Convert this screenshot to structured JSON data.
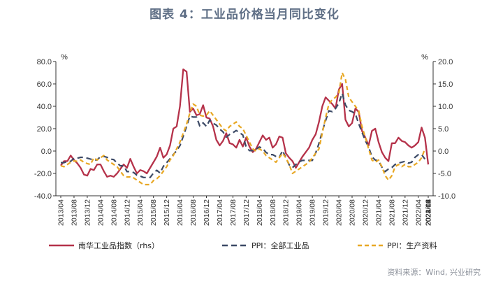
{
  "title": "图表 4：工业品价格当月同比变化",
  "source": "资料来源：Wind, 兴业研究",
  "chart_data": {
    "type": "line",
    "left_axis": {
      "unit": "%",
      "min": -40,
      "max": 80,
      "ticks": [
        "80.0",
        "60.0",
        "40.0",
        "20.0",
        "0.0",
        "-20.0",
        "-40.0"
      ]
    },
    "right_axis": {
      "unit": "%",
      "min": -10,
      "max": 20,
      "ticks": [
        "20.0",
        "15.0",
        "10.0",
        "5.0",
        "0.0",
        "-5.0",
        "-10.0"
      ]
    },
    "x_labels": [
      "2013/04",
      "2013/08",
      "2013/12",
      "2014/04",
      "2014/08",
      "2014/12",
      "2015/04",
      "2015/08",
      "2015/12",
      "2016/04",
      "2016/08",
      "2016/12",
      "2017/04",
      "2017/08",
      "2017/12",
      "2018/04",
      "2018/08",
      "2018/12",
      "2019/04",
      "2019/08",
      "2019/12",
      "2020/04",
      "2020/08",
      "2020/12",
      "2021/04",
      "2021/08",
      "2021/12",
      "2022/04",
      "2022/08",
      "2022/12",
      "2023/04",
      "2023/08",
      "2023/12",
      "2024/04",
      "2024/08"
    ],
    "grid": false,
    "series": [
      {
        "name": "南华工业品指数（rhs）",
        "color": "#b5324a",
        "dash": "solid",
        "axis": "left",
        "values": [
          -13,
          -9,
          -9,
          -4,
          -8,
          -11,
          -15,
          -21,
          -22,
          -16,
          -17,
          -12,
          -12,
          -18,
          -23,
          -22,
          -23,
          -20,
          -16,
          -12,
          -15,
          -7,
          -14,
          -20,
          -17,
          -18,
          -20,
          -15,
          -10,
          -5,
          3,
          -6,
          -3,
          5,
          20,
          22,
          40,
          73,
          71,
          35,
          38,
          32,
          33,
          41,
          30,
          29,
          22,
          10,
          5,
          9,
          16,
          7,
          6,
          3,
          10,
          4,
          12,
          4,
          -1,
          2,
          8,
          14,
          10,
          12,
          3,
          6,
          13,
          12,
          -2,
          -6,
          -9,
          -15,
          -10,
          -5,
          -1,
          3,
          10,
          15,
          26,
          40,
          48,
          45,
          42,
          38,
          55,
          60,
          28,
          22,
          25,
          38,
          35,
          18,
          12,
          5,
          18,
          20,
          8,
          -1,
          -6,
          -9,
          7,
          7,
          12,
          9,
          8,
          5,
          3,
          5,
          8,
          21,
          12,
          -12
        ]
      },
      {
        "name": "PPI：全部工业品",
        "color": "#3c4a66",
        "dash": "8,5",
        "axis": "right",
        "values": [
          -2.6,
          -2.6,
          -2.3,
          -2.3,
          -1.6,
          -1.6,
          -1.4,
          -1.4,
          -1.6,
          -1.8,
          -2.0,
          -2.0,
          -1.2,
          -1.2,
          -1.4,
          -1.8,
          -1.9,
          -2.7,
          -3.3,
          -3.3,
          -4.6,
          -4.6,
          -4.8,
          -5.4,
          -5.6,
          -5.9,
          -5.9,
          -5.9,
          -4.9,
          -4.3,
          -4.9,
          -3.4,
          -2.6,
          -1.7,
          -0.8,
          0.1,
          1.2,
          3.3,
          5.5,
          7.8,
          7.6,
          7.6,
          5.6,
          6.3,
          5.5,
          6.9,
          6.2,
          5.8,
          4.9,
          4.3,
          3.1,
          3.7,
          4.1,
          4.6,
          4.1,
          3.6,
          0.9,
          0.1,
          0.1,
          0.4,
          0.9,
          0.6,
          -0.3,
          -0.8,
          -0.8,
          -1.2,
          -1.4,
          0.1,
          -1.5,
          -3.1,
          -3.7,
          -3.0,
          -2.4,
          -2.1,
          -2.1,
          -2.1,
          -2.1,
          -0.4,
          1.7,
          4.4,
          6.8,
          9.0,
          8.8,
          9.5,
          10.7,
          12.9,
          10.3,
          9.1,
          8.8,
          8.3,
          6.1,
          4.2,
          2.3,
          0.9,
          -1.3,
          -2.0,
          -2.2,
          -3.6,
          -4.6,
          -4.0,
          -3.7,
          -3.0,
          -2.7,
          -2.5,
          -2.3,
          -2.7,
          -2.5,
          -1.4,
          -0.8,
          -0.8,
          -1.8
        ]
      },
      {
        "name": "PPI：生产资料",
        "color": "#e8a825",
        "dash": "6,4",
        "axis": "right",
        "values": [
          -3.3,
          -3.5,
          -3.0,
          -2.5,
          -2.2,
          -2.3,
          -2.0,
          -2.5,
          -2.8,
          -3.0,
          -1.5,
          -2.0,
          -1.5,
          -1.0,
          -2.0,
          -2.5,
          -3.0,
          -3.5,
          -4.5,
          -5.5,
          -5.8,
          -5.8,
          -6.0,
          -6.5,
          -7.0,
          -7.5,
          -7.5,
          -7.5,
          -6.6,
          -6.2,
          -5.5,
          -4.5,
          -3.5,
          -2.0,
          -1.0,
          0.5,
          2.0,
          4.0,
          6.0,
          8.5,
          10.5,
          10.0,
          8.0,
          7.8,
          8.0,
          9.0,
          8.0,
          7.0,
          6.0,
          5.0,
          4.5,
          5.5,
          6.0,
          6.5,
          5.5,
          5.0,
          3.5,
          2.0,
          0.5,
          0.0,
          0.5,
          0.0,
          -1.0,
          -1.5,
          -2.0,
          -2.5,
          -1.5,
          -0.5,
          -1.5,
          -3.0,
          -5.0,
          -4.5,
          -4.0,
          -3.5,
          -3.0,
          -2.5,
          -1.5,
          -0.5,
          0.5,
          4.0,
          7.5,
          10.5,
          11.5,
          12.0,
          13.0,
          17.5,
          16.0,
          12.0,
          11.0,
          10.0,
          9.0,
          5.5,
          3.0,
          0.5,
          -2.0,
          -2.5,
          -2.0,
          -3.5,
          -5.5,
          -6.5,
          -5.5,
          -3.5,
          -3.0,
          -3.5,
          -3.0,
          -3.5,
          -3.5,
          -3.0,
          -2.5,
          -1.5,
          0.5
        ]
      }
    ]
  }
}
